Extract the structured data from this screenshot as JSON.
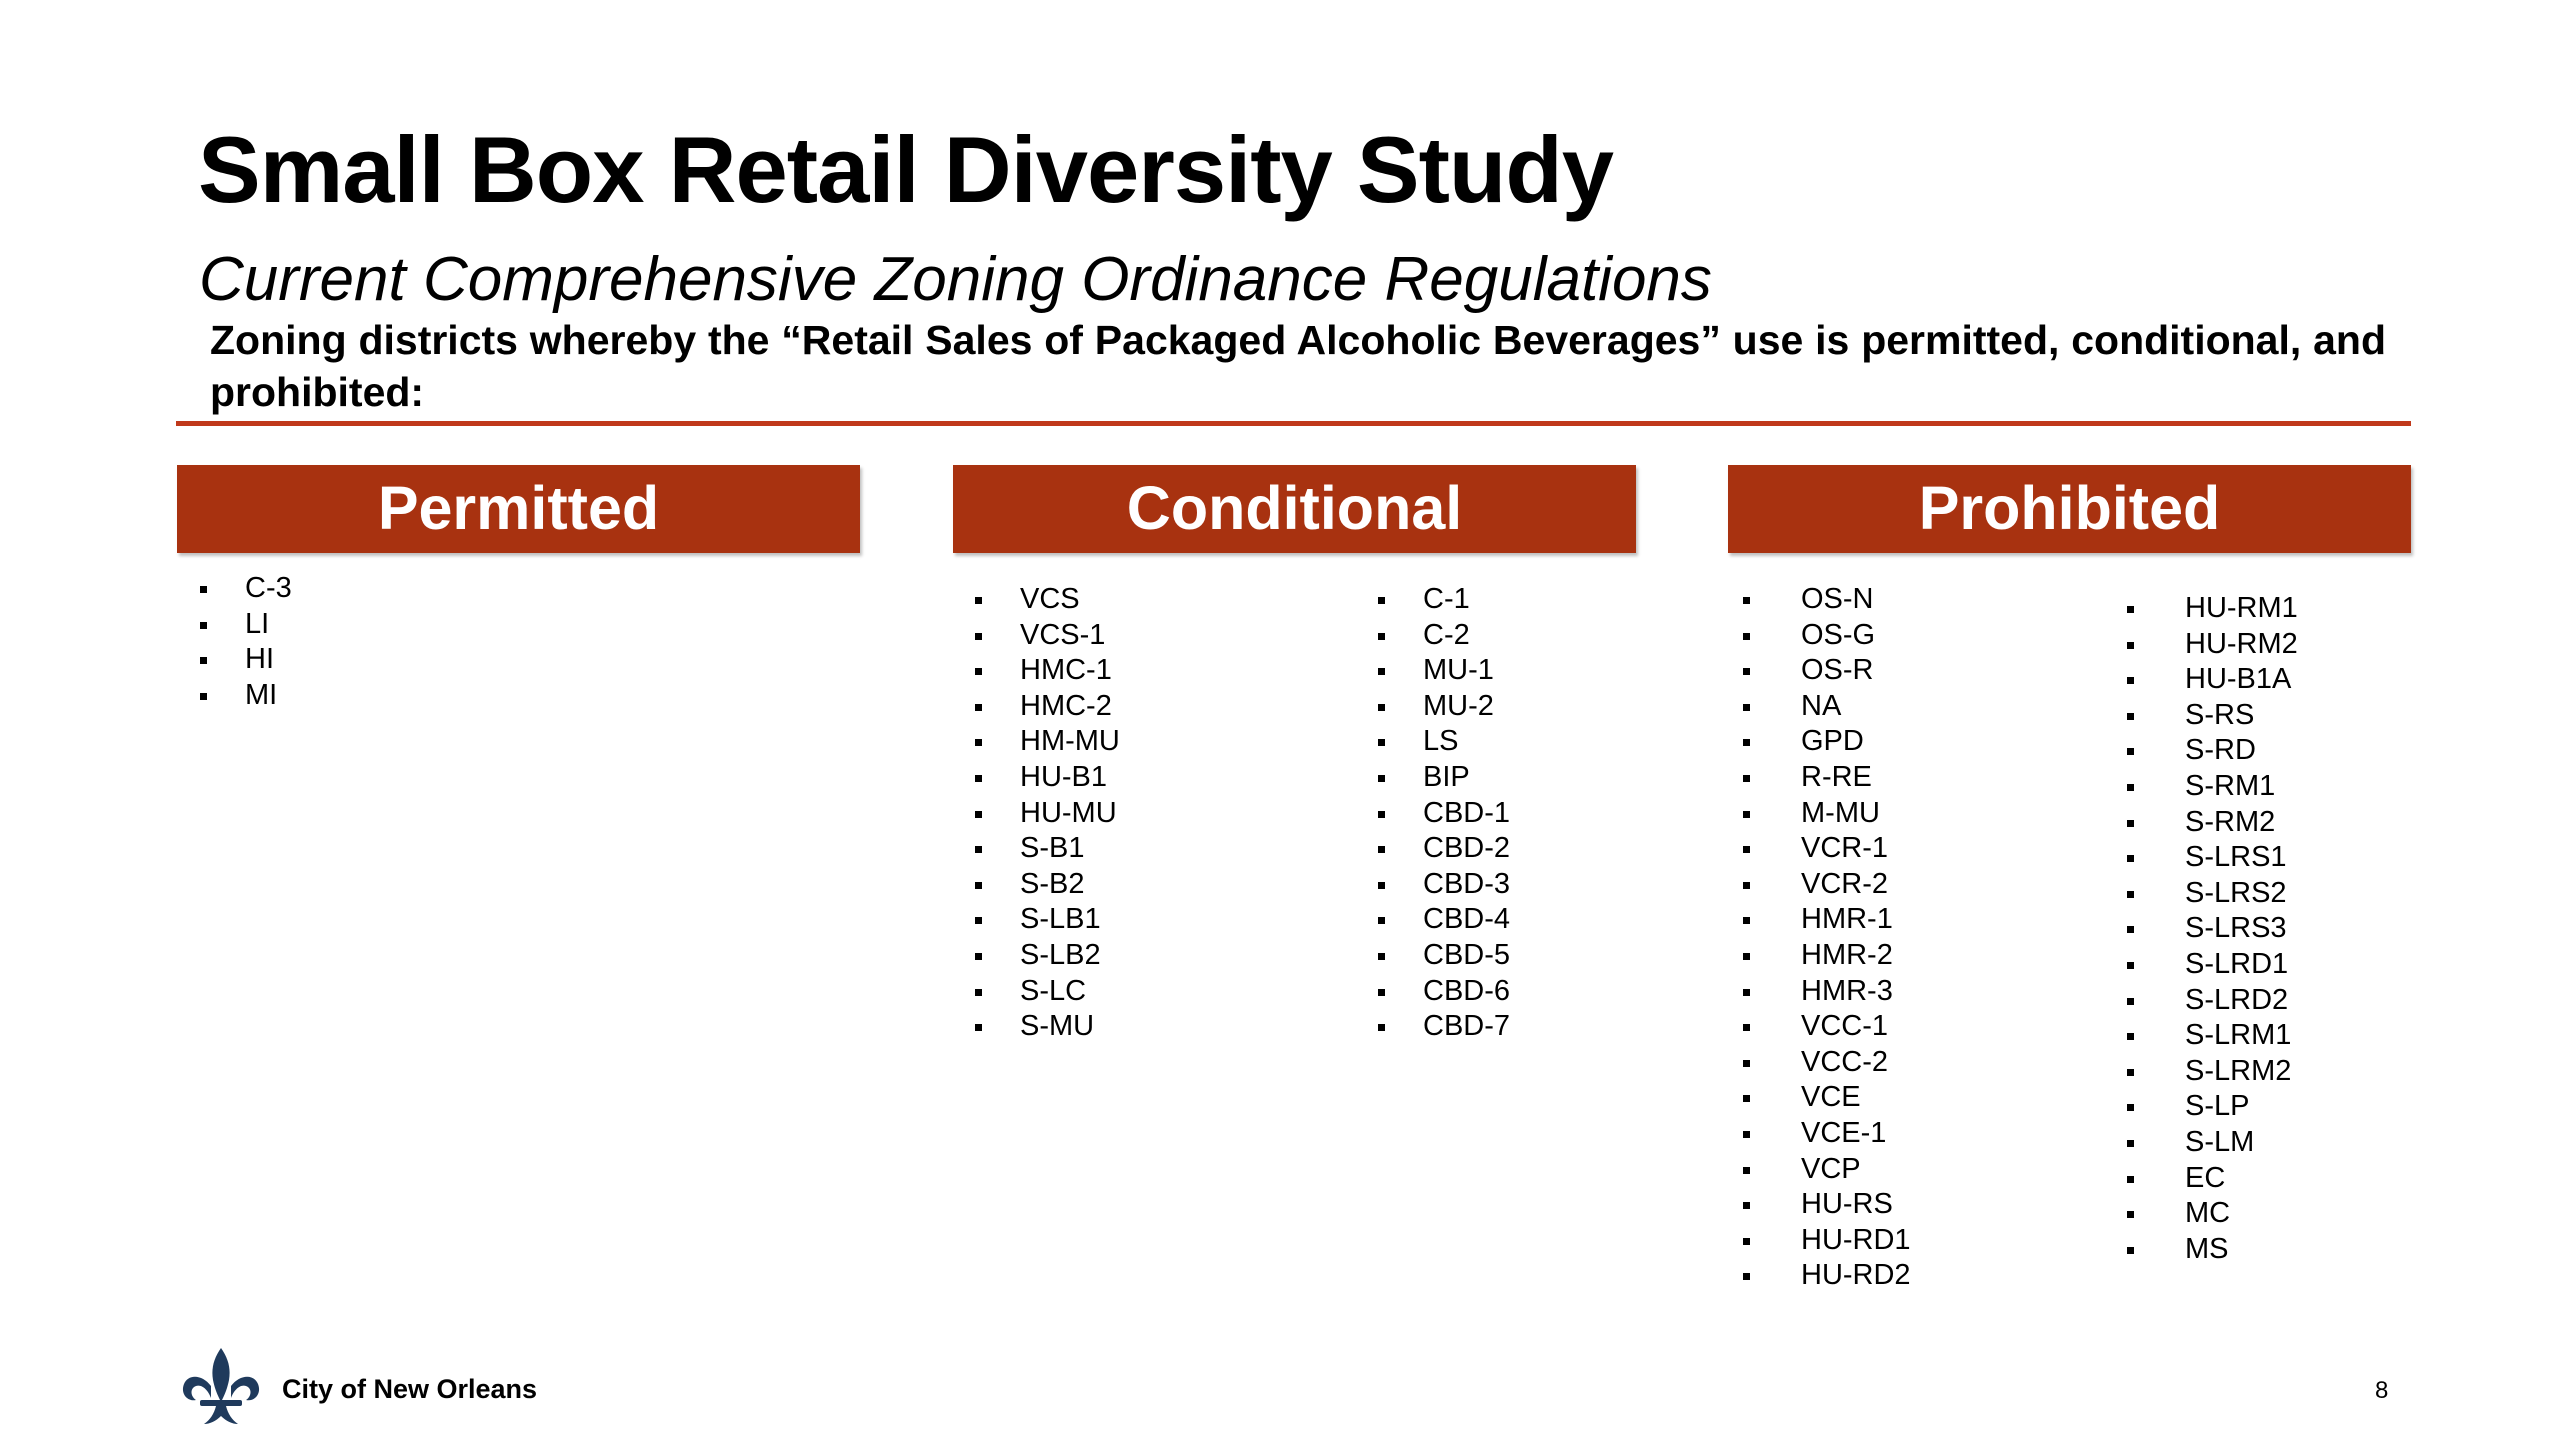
{
  "title": "Small Box Retail Diversity Study",
  "subtitle": "Current Comprehensive Zoning Ordinance Regulations",
  "description": "Zoning districts whereby the “Retail Sales of Packaged Alcoholic Beverages” use is permitted, conditional, and prohibited:",
  "colors": {
    "accent": "#a83210",
    "rule": "#c0391b",
    "header_text": "#ffffff"
  },
  "columns": {
    "permitted": {
      "heading": "Permitted",
      "lists": [
        [
          "C-3",
          "LI",
          "HI",
          "MI"
        ]
      ]
    },
    "conditional": {
      "heading": "Conditional",
      "lists": [
        [
          "VCS",
          "VCS-1",
          "HMC-1",
          "HMC-2",
          "HM-MU",
          "HU-B1",
          "HU-MU",
          "S-B1",
          "S-B2",
          "S-LB1",
          "S-LB2",
          "S-LC",
          "S-MU"
        ],
        [
          "C-1",
          "C-2",
          "MU-1",
          "MU-2",
          "LS",
          "BIP",
          "CBD-1",
          "CBD-2",
          "CBD-3",
          "CBD-4",
          "CBD-5",
          "CBD-6",
          "CBD-7"
        ]
      ]
    },
    "prohibited": {
      "heading": "Prohibited",
      "lists": [
        [
          "OS-N",
          "OS-G",
          "OS-R",
          "NA",
          "GPD",
          "R-RE",
          "M-MU",
          "VCR-1",
          "VCR-2",
          "HMR-1",
          "HMR-2",
          "HMR-3",
          "VCC-1",
          "VCC-2",
          "VCE",
          "VCE-1",
          "VCP",
          "HU-RS",
          "HU-RD1",
          "HU-RD2"
        ],
        [
          "HU-RM1",
          "HU-RM2",
          "HU-B1A",
          "S-RS",
          "S-RD",
          "S-RM1",
          "S-RM2",
          "S-LRS1",
          "S-LRS2",
          "S-LRS3",
          "S-LRD1",
          "S-LRD2",
          "S-LRM1",
          "S-LRM2",
          "S-LP",
          "S-LM",
          "EC",
          "MC",
          "MS"
        ]
      ]
    }
  },
  "footer": {
    "logo_icon": "fleur-de-lis-icon",
    "organization": "City of New Orleans",
    "page_number": "8"
  }
}
